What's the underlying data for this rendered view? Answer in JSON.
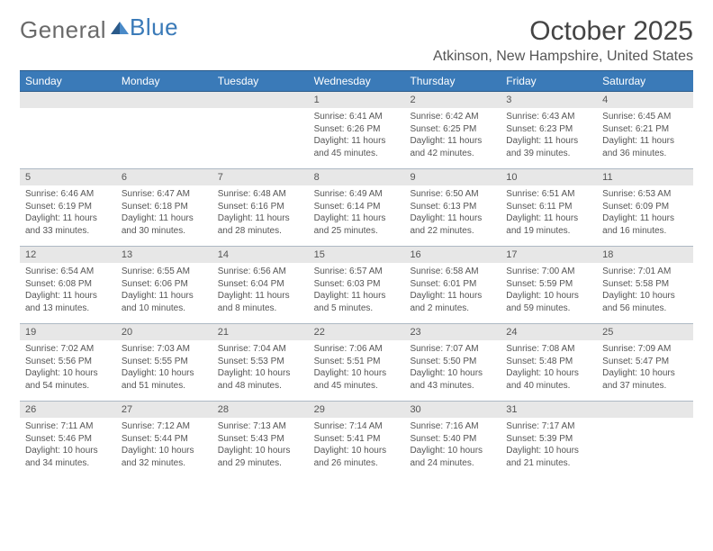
{
  "logo": {
    "word1": "General",
    "word2": "Blue"
  },
  "title": "October 2025",
  "location": "Atkinson, New Hampshire, United States",
  "weekdays": [
    "Sunday",
    "Monday",
    "Tuesday",
    "Wednesday",
    "Thursday",
    "Friday",
    "Saturday"
  ],
  "colors": {
    "header_bg": "#3a7ab8",
    "header_text": "#ffffff",
    "daynum_bg": "#e7e7e7",
    "border": "#aeb9c4",
    "text": "#555555"
  },
  "weeks": [
    [
      {
        "num": "",
        "lines": [
          "",
          "",
          "",
          ""
        ]
      },
      {
        "num": "",
        "lines": [
          "",
          "",
          "",
          ""
        ]
      },
      {
        "num": "",
        "lines": [
          "",
          "",
          "",
          ""
        ]
      },
      {
        "num": "1",
        "lines": [
          "Sunrise: 6:41 AM",
          "Sunset: 6:26 PM",
          "Daylight: 11 hours",
          "and 45 minutes."
        ]
      },
      {
        "num": "2",
        "lines": [
          "Sunrise: 6:42 AM",
          "Sunset: 6:25 PM",
          "Daylight: 11 hours",
          "and 42 minutes."
        ]
      },
      {
        "num": "3",
        "lines": [
          "Sunrise: 6:43 AM",
          "Sunset: 6:23 PM",
          "Daylight: 11 hours",
          "and 39 minutes."
        ]
      },
      {
        "num": "4",
        "lines": [
          "Sunrise: 6:45 AM",
          "Sunset: 6:21 PM",
          "Daylight: 11 hours",
          "and 36 minutes."
        ]
      }
    ],
    [
      {
        "num": "5",
        "lines": [
          "Sunrise: 6:46 AM",
          "Sunset: 6:19 PM",
          "Daylight: 11 hours",
          "and 33 minutes."
        ]
      },
      {
        "num": "6",
        "lines": [
          "Sunrise: 6:47 AM",
          "Sunset: 6:18 PM",
          "Daylight: 11 hours",
          "and 30 minutes."
        ]
      },
      {
        "num": "7",
        "lines": [
          "Sunrise: 6:48 AM",
          "Sunset: 6:16 PM",
          "Daylight: 11 hours",
          "and 28 minutes."
        ]
      },
      {
        "num": "8",
        "lines": [
          "Sunrise: 6:49 AM",
          "Sunset: 6:14 PM",
          "Daylight: 11 hours",
          "and 25 minutes."
        ]
      },
      {
        "num": "9",
        "lines": [
          "Sunrise: 6:50 AM",
          "Sunset: 6:13 PM",
          "Daylight: 11 hours",
          "and 22 minutes."
        ]
      },
      {
        "num": "10",
        "lines": [
          "Sunrise: 6:51 AM",
          "Sunset: 6:11 PM",
          "Daylight: 11 hours",
          "and 19 minutes."
        ]
      },
      {
        "num": "11",
        "lines": [
          "Sunrise: 6:53 AM",
          "Sunset: 6:09 PM",
          "Daylight: 11 hours",
          "and 16 minutes."
        ]
      }
    ],
    [
      {
        "num": "12",
        "lines": [
          "Sunrise: 6:54 AM",
          "Sunset: 6:08 PM",
          "Daylight: 11 hours",
          "and 13 minutes."
        ]
      },
      {
        "num": "13",
        "lines": [
          "Sunrise: 6:55 AM",
          "Sunset: 6:06 PM",
          "Daylight: 11 hours",
          "and 10 minutes."
        ]
      },
      {
        "num": "14",
        "lines": [
          "Sunrise: 6:56 AM",
          "Sunset: 6:04 PM",
          "Daylight: 11 hours",
          "and 8 minutes."
        ]
      },
      {
        "num": "15",
        "lines": [
          "Sunrise: 6:57 AM",
          "Sunset: 6:03 PM",
          "Daylight: 11 hours",
          "and 5 minutes."
        ]
      },
      {
        "num": "16",
        "lines": [
          "Sunrise: 6:58 AM",
          "Sunset: 6:01 PM",
          "Daylight: 11 hours",
          "and 2 minutes."
        ]
      },
      {
        "num": "17",
        "lines": [
          "Sunrise: 7:00 AM",
          "Sunset: 5:59 PM",
          "Daylight: 10 hours",
          "and 59 minutes."
        ]
      },
      {
        "num": "18",
        "lines": [
          "Sunrise: 7:01 AM",
          "Sunset: 5:58 PM",
          "Daylight: 10 hours",
          "and 56 minutes."
        ]
      }
    ],
    [
      {
        "num": "19",
        "lines": [
          "Sunrise: 7:02 AM",
          "Sunset: 5:56 PM",
          "Daylight: 10 hours",
          "and 54 minutes."
        ]
      },
      {
        "num": "20",
        "lines": [
          "Sunrise: 7:03 AM",
          "Sunset: 5:55 PM",
          "Daylight: 10 hours",
          "and 51 minutes."
        ]
      },
      {
        "num": "21",
        "lines": [
          "Sunrise: 7:04 AM",
          "Sunset: 5:53 PM",
          "Daylight: 10 hours",
          "and 48 minutes."
        ]
      },
      {
        "num": "22",
        "lines": [
          "Sunrise: 7:06 AM",
          "Sunset: 5:51 PM",
          "Daylight: 10 hours",
          "and 45 minutes."
        ]
      },
      {
        "num": "23",
        "lines": [
          "Sunrise: 7:07 AM",
          "Sunset: 5:50 PM",
          "Daylight: 10 hours",
          "and 43 minutes."
        ]
      },
      {
        "num": "24",
        "lines": [
          "Sunrise: 7:08 AM",
          "Sunset: 5:48 PM",
          "Daylight: 10 hours",
          "and 40 minutes."
        ]
      },
      {
        "num": "25",
        "lines": [
          "Sunrise: 7:09 AM",
          "Sunset: 5:47 PM",
          "Daylight: 10 hours",
          "and 37 minutes."
        ]
      }
    ],
    [
      {
        "num": "26",
        "lines": [
          "Sunrise: 7:11 AM",
          "Sunset: 5:46 PM",
          "Daylight: 10 hours",
          "and 34 minutes."
        ]
      },
      {
        "num": "27",
        "lines": [
          "Sunrise: 7:12 AM",
          "Sunset: 5:44 PM",
          "Daylight: 10 hours",
          "and 32 minutes."
        ]
      },
      {
        "num": "28",
        "lines": [
          "Sunrise: 7:13 AM",
          "Sunset: 5:43 PM",
          "Daylight: 10 hours",
          "and 29 minutes."
        ]
      },
      {
        "num": "29",
        "lines": [
          "Sunrise: 7:14 AM",
          "Sunset: 5:41 PM",
          "Daylight: 10 hours",
          "and 26 minutes."
        ]
      },
      {
        "num": "30",
        "lines": [
          "Sunrise: 7:16 AM",
          "Sunset: 5:40 PM",
          "Daylight: 10 hours",
          "and 24 minutes."
        ]
      },
      {
        "num": "31",
        "lines": [
          "Sunrise: 7:17 AM",
          "Sunset: 5:39 PM",
          "Daylight: 10 hours",
          "and 21 minutes."
        ]
      },
      {
        "num": "",
        "lines": [
          "",
          "",
          "",
          ""
        ]
      }
    ]
  ]
}
